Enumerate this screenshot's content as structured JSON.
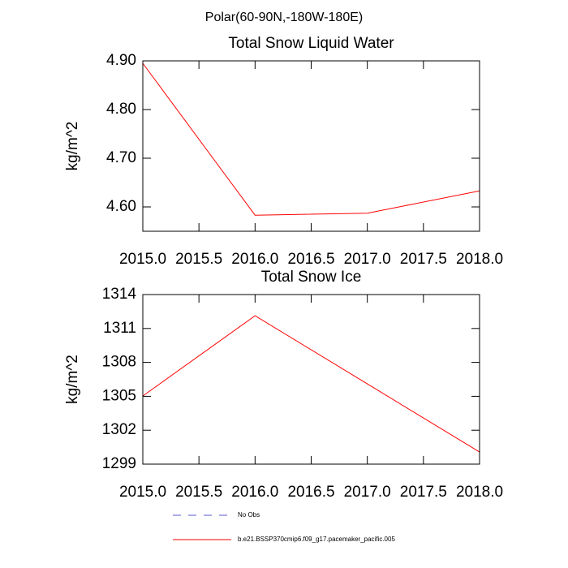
{
  "title": "Polar(60-90N,-180W-180E)",
  "chart_data": [
    {
      "type": "line",
      "title": "Total Snow Liquid Water",
      "y_label": "kg/m^2",
      "x": [
        2015,
        2016,
        2017,
        2018
      ],
      "series": [
        {
          "color": "#ff0000",
          "values": [
            4.895,
            4.583,
            4.587,
            4.633
          ]
        }
      ],
      "xlim": [
        2015,
        2018
      ],
      "xticks": [
        {
          "value": 2015,
          "label": "2015.0"
        },
        {
          "value": 2015.5,
          "label": "2015.5"
        },
        {
          "value": 2016,
          "label": "2016.0"
        },
        {
          "value": 2016.5,
          "label": "2016.5"
        },
        {
          "value": 2017,
          "label": "2017.0"
        },
        {
          "value": 2017.5,
          "label": "2017.5"
        },
        {
          "value": 2018,
          "label": "2018.0"
        }
      ],
      "ylim": [
        4.55,
        4.9
      ],
      "yticks": [
        {
          "value": 4.6,
          "label": "4.60"
        },
        {
          "value": 4.7,
          "label": "4.70"
        },
        {
          "value": 4.8,
          "label": "4.80"
        },
        {
          "value": 4.9,
          "label": "4.90"
        }
      ]
    },
    {
      "type": "line",
      "title": "Total Snow Ice",
      "y_label": "kg/m^2",
      "x": [
        2015,
        2016,
        2017,
        2018
      ],
      "series": [
        {
          "color": "#ff0000",
          "values": [
            1305.03,
            1312.13,
            1306.1,
            1300.07
          ]
        }
      ],
      "xlim": [
        2015,
        2018
      ],
      "xticks": [
        {
          "value": 2015,
          "label": "2015.0"
        },
        {
          "value": 2015.5,
          "label": "2015.5"
        },
        {
          "value": 2016,
          "label": "2016.0"
        },
        {
          "value": 2016.5,
          "label": "2016.5"
        },
        {
          "value": 2017,
          "label": "2017.0"
        },
        {
          "value": 2017.5,
          "label": "2017.5"
        },
        {
          "value": 2018,
          "label": "2018.0"
        }
      ],
      "ylim": [
        1299,
        1314
      ],
      "yticks": [
        1299,
        1302,
        1305,
        1308,
        1311,
        1314
      ]
    }
  ],
  "legend": [
    {
      "label": "No Obs",
      "color": "#5a5ad2",
      "dashed": true
    },
    {
      "label": "b.e21.BSSP370cmip6.f09_g17.pacemaker_pacific.005",
      "color": "#ff0000",
      "dashed": false
    }
  ]
}
